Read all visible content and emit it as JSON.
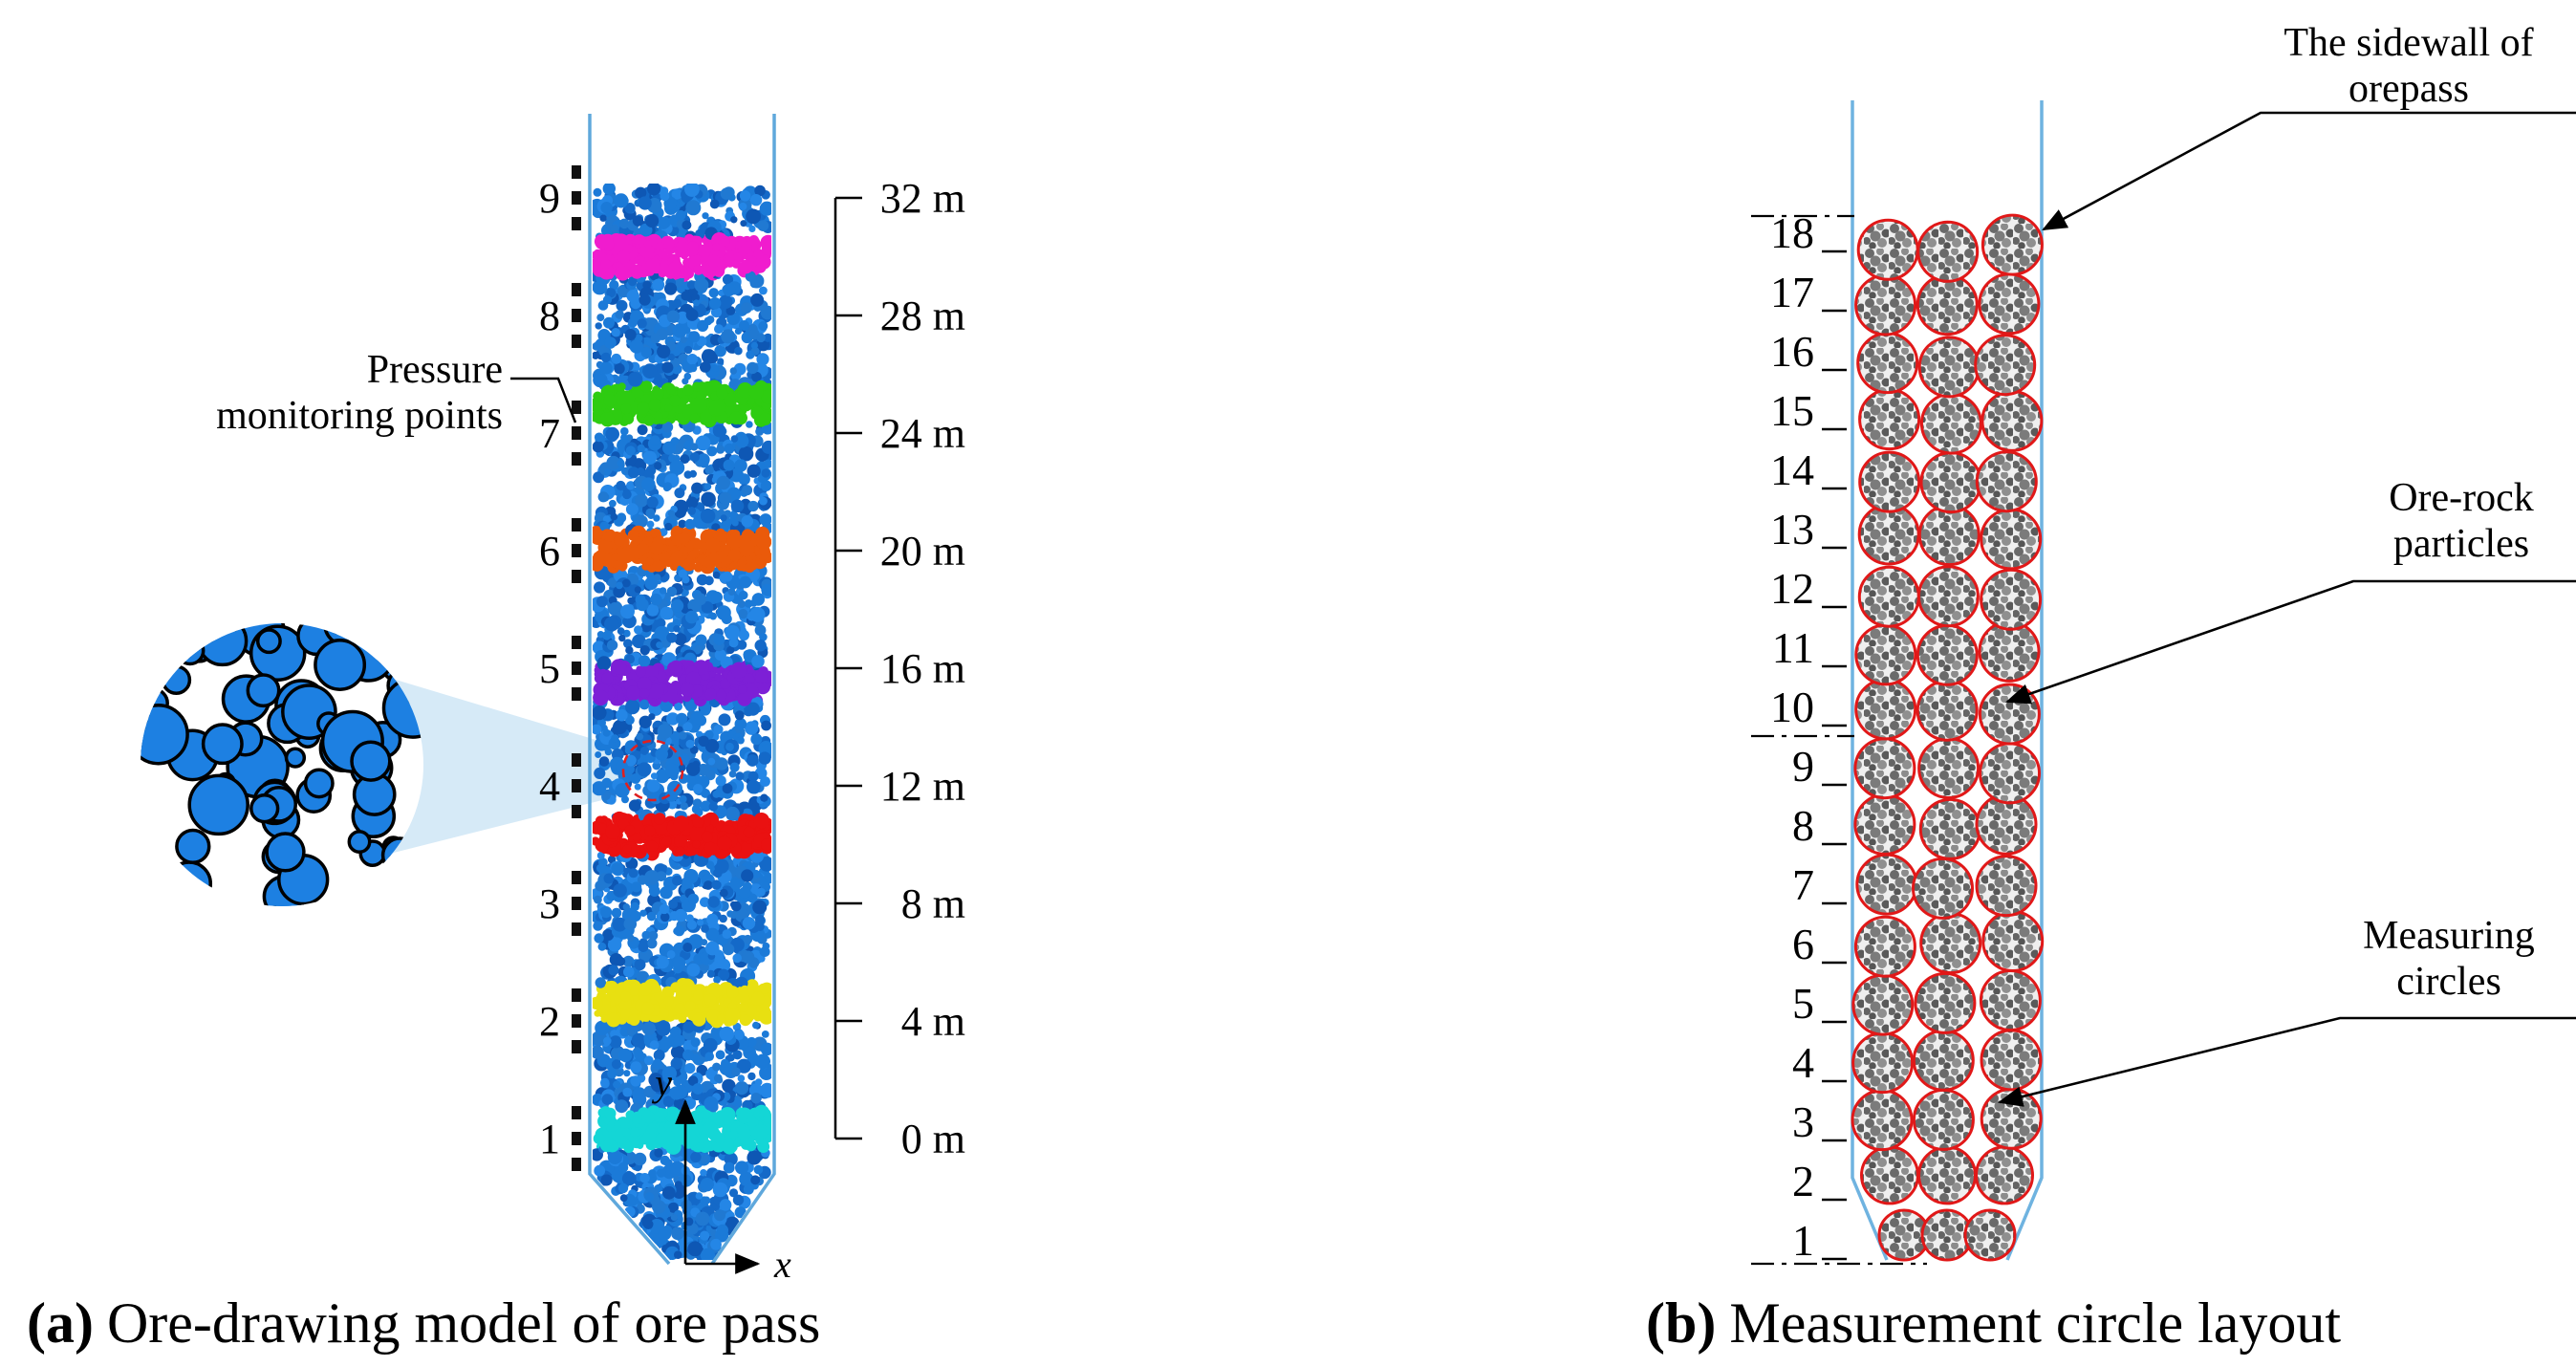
{
  "panel_a": {
    "caption": {
      "label": "(a)",
      "text": "Ore-drawing model of ore pass"
    },
    "pressure_label": {
      "line1": "Pressure",
      "line2": "monitoring points"
    },
    "monitor_points": [
      "9",
      "8",
      "7",
      "6",
      "5",
      "4",
      "3",
      "2",
      "1"
    ],
    "ruler_labels": [
      "32 m",
      "28 m",
      "24 m",
      "20 m",
      "16 m",
      "12 m",
      "8 m",
      "4 m",
      "0 m"
    ],
    "axes": {
      "x": "x",
      "y": "y"
    },
    "wall_color": "#5fa8dc",
    "particle_color": "#1b7ad8",
    "marker_circle_color": "#e02020",
    "bands": [
      {
        "color": "#f01cce",
        "height_m": 30.0
      },
      {
        "color": "#2ecc11",
        "height_m": 25.0
      },
      {
        "color": "#ea5a0a",
        "height_m": 20.0
      },
      {
        "color": "#7d1fd6",
        "height_m": 15.5
      },
      {
        "color": "#ea1111",
        "height_m": 10.3
      },
      {
        "color": "#e8e011",
        "height_m": 4.6
      },
      {
        "color": "#14d6d6",
        "height_m": 0.3
      }
    ]
  },
  "panel_b": {
    "caption": {
      "label": "(b)",
      "text": "Measurement circle layout"
    },
    "row_numbers": [
      "18",
      "17",
      "16",
      "15",
      "14",
      "13",
      "12",
      "11",
      "10",
      "9",
      "8",
      "7",
      "6",
      "5",
      "4",
      "3",
      "2",
      "1"
    ],
    "annotations": {
      "sidewall": {
        "line1": "The sidewall of",
        "line2": "orepass"
      },
      "ore_rock": {
        "line1": "Ore-rock",
        "line2": "particles"
      },
      "measuring": {
        "line1": "Measuring",
        "line2": "circles"
      }
    },
    "wall_color": "#6fb3e0",
    "measuring_circle_color": "#e11818"
  }
}
